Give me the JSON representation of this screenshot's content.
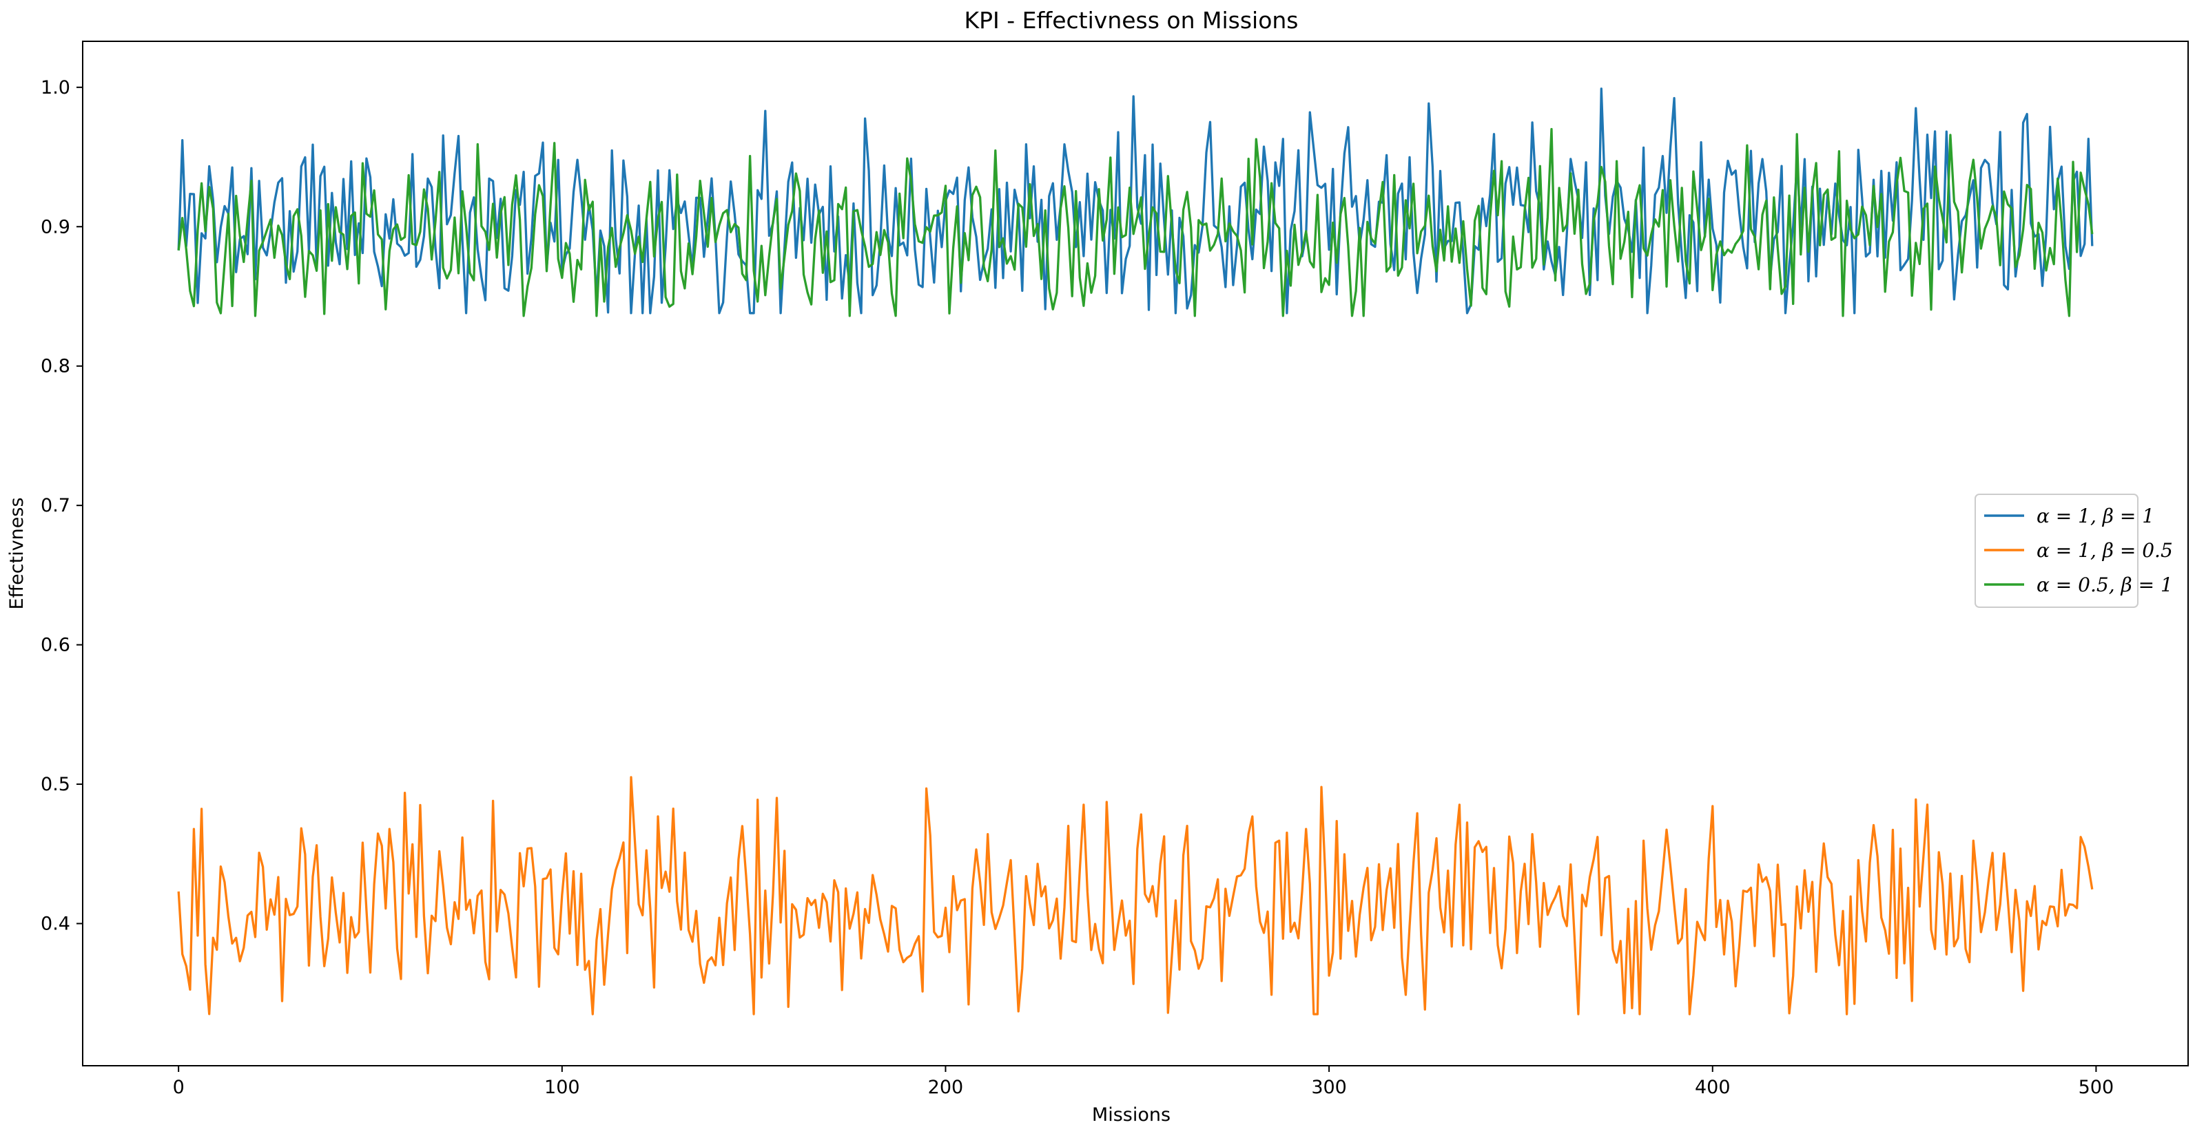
{
  "chart_data": {
    "type": "line",
    "title": "KPI - Effectivness on Missions",
    "xlabel": "Missions",
    "ylabel": "Effectivness",
    "xlim": [
      -25,
      524
    ],
    "ylim": [
      0.298,
      1.033
    ],
    "xticks": [
      0,
      100,
      200,
      300,
      400,
      500
    ],
    "yticks": [
      0.4,
      0.5,
      0.6,
      0.7,
      0.8,
      0.9,
      1.0
    ],
    "xtick_labels": [
      "0",
      "100",
      "200",
      "300",
      "400",
      "500"
    ],
    "ytick_labels": [
      "0.4",
      "0.5",
      "0.6",
      "0.7",
      "0.8",
      "0.9",
      "1.0"
    ],
    "grid": false,
    "legend_position": "center-right",
    "n_points": 500,
    "series": [
      {
        "name": "α = 1, β = 1",
        "color": "#1f77b4",
        "noise_seed": 11,
        "mean": 0.905,
        "min": 0.838,
        "max": 1.0,
        "anchors": [
          [
            0,
            0.883
          ],
          [
            1,
            0.962
          ],
          [
            153,
            0.983
          ],
          [
            371,
            0.999
          ],
          [
            453,
            0.985
          ],
          [
            498,
            0.963
          ]
        ]
      },
      {
        "name": "α = 1, β = 0.5",
        "color": "#ff7f0e",
        "noise_seed": 29,
        "mean": 0.41,
        "min": 0.335,
        "max": 0.505,
        "anchors": [
          [
            0,
            0.423
          ],
          [
            1,
            0.378
          ],
          [
            82,
            0.488
          ],
          [
            118,
            0.505
          ],
          [
            219,
            0.337
          ],
          [
            258,
            0.336
          ],
          [
            298,
            0.498
          ],
          [
            453,
            0.489
          ],
          [
            497,
            0.455
          ]
        ]
      },
      {
        "name": "α = 0.5, β = 1",
        "color": "#2ca02c",
        "noise_seed": 47,
        "mean": 0.895,
        "min": 0.836,
        "max": 0.97,
        "anchors": [
          [
            0,
            0.883
          ],
          [
            4,
            0.843
          ],
          [
            98,
            0.96
          ],
          [
            288,
            0.836
          ],
          [
            358,
            0.97
          ],
          [
            497,
            0.927
          ]
        ]
      }
    ]
  }
}
